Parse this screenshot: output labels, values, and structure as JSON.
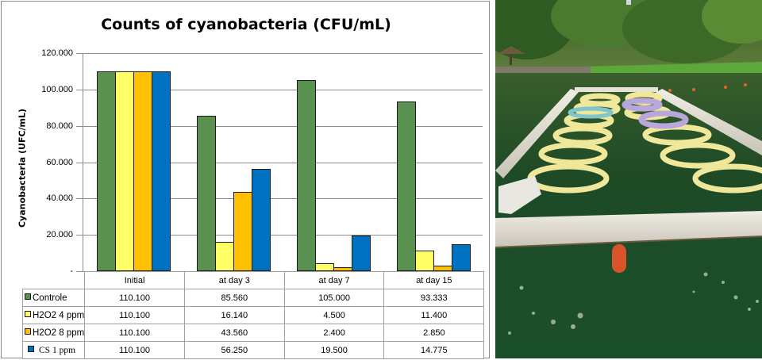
{
  "chart": {
    "title": "Counts of cyanobacteria (CFU/mL)",
    "ylabel": "Cyanobacteria (UFC/mL)",
    "y_ticks": [
      "120.000",
      "100.000",
      "80.000",
      "60.000",
      "40.000",
      "20.000",
      "-"
    ],
    "table_header": [
      "Initial",
      "at day 3",
      "at day 7",
      "at day 15"
    ],
    "rows": [
      {
        "label": "Controle",
        "color": "#5B9150",
        "values": [
          "110.100",
          "85.560",
          "105.000",
          "93.333"
        ]
      },
      {
        "label": "H2O2 4 ppm",
        "color": "#FFFF66",
        "values": [
          "110.100",
          "16.140",
          "4.500",
          "11.400"
        ]
      },
      {
        "label": "H2O2 8 ppm",
        "color": "#FFC000",
        "values": [
          "110.100",
          "43.560",
          "2.400",
          "2.850"
        ]
      },
      {
        "label": "CS 1 ppm",
        "color": "#0070C0",
        "values": [
          "110.100",
          "56.250",
          "19.500",
          "14.775"
        ]
      }
    ]
  },
  "photo": {
    "description": "Experimental mesocosm enclosures (floating rings) in a green cyanobacteria-rich pond"
  },
  "chart_data": {
    "type": "bar",
    "title": "Counts of cyanobacteria (CFU/mL)",
    "xlabel": "",
    "ylabel": "Cyanobacteria (UFC/mL)",
    "categories": [
      "Initial",
      "at day 3",
      "at day 7",
      "at day 15"
    ],
    "series": [
      {
        "name": "Controle",
        "color": "#5B9150",
        "values": [
          110100,
          85560,
          105000,
          93333
        ]
      },
      {
        "name": "H2O2 4 ppm",
        "color": "#FFFF66",
        "values": [
          110100,
          16140,
          4500,
          11400
        ]
      },
      {
        "name": "H2O2 8 ppm",
        "color": "#FFC000",
        "values": [
          110100,
          43560,
          2400,
          2850
        ]
      },
      {
        "name": "CS 1 ppm",
        "color": "#0070C0",
        "values": [
          110100,
          56250,
          19500,
          14775
        ]
      }
    ],
    "ylim": [
      0,
      120000
    ],
    "y_ticks": [
      0,
      20000,
      40000,
      60000,
      80000,
      100000,
      120000
    ],
    "grid": true,
    "legend_position": "data table below chart"
  }
}
